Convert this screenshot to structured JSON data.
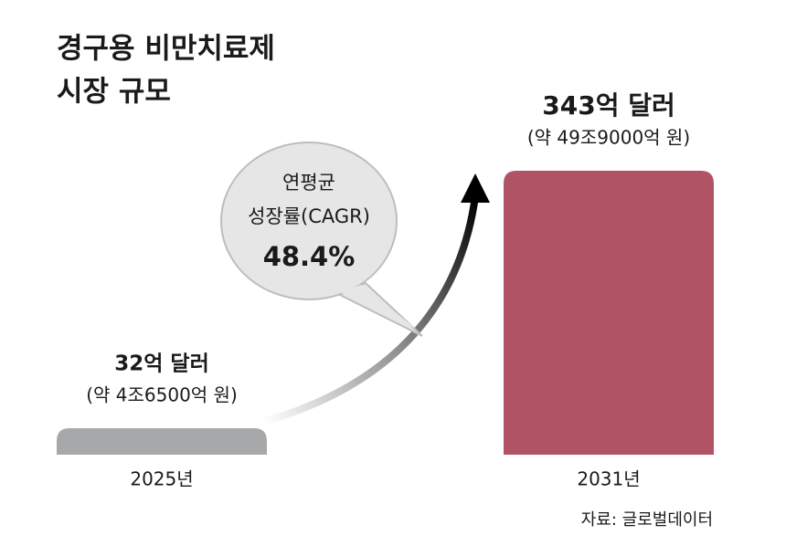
{
  "chart_data": {
    "type": "bar",
    "title": [
      "경구용 비만치료제",
      "시장 규모"
    ],
    "categories": [
      "2025년",
      "2031년"
    ],
    "values": [
      32,
      343
    ],
    "value_labels": [
      "32억 달러",
      "343억 달러"
    ],
    "sub_labels": [
      "(약 4조6500억 원)",
      "(약 49조9000억 원)"
    ],
    "colors": [
      "#a7a8aa",
      "#b05465"
    ],
    "annotation": [
      "연평균",
      "성장률(CAGR)",
      "48.4%"
    ],
    "source": "자료: 글로벌데이터"
  }
}
